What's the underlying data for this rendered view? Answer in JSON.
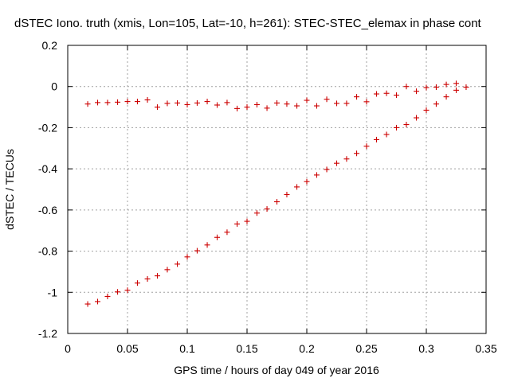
{
  "chart_data": {
    "type": "scatter",
    "title": "dSTEC Iono. truth (xmis, Lon=105, Lat=-10, h=261): STEC-STEC_elemax in phase cont",
    "xlabel": "GPS time / hours of day 049 of year 2016",
    "ylabel": "dSTEC  / TECUs",
    "xlim": [
      0,
      0.35
    ],
    "ylim": [
      -1.2,
      0.2
    ],
    "xticks": [
      0,
      0.05,
      0.1,
      0.15,
      0.2,
      0.25,
      0.3,
      0.35
    ],
    "xtick_labels": [
      "0",
      "0.05",
      "0.1",
      "0.15",
      "0.2",
      "0.25",
      "0.3",
      "0.35"
    ],
    "yticks": [
      -1.2,
      -1,
      -0.8,
      -0.6,
      -0.4,
      -0.2,
      0,
      0.2
    ],
    "ytick_labels": [
      "-1.2",
      "-1",
      "-0.8",
      "-0.6",
      "-0.4",
      "-0.2",
      "0",
      "0.2"
    ],
    "grid": true,
    "marker": "+",
    "marker_color": "#cc0000",
    "series": [
      {
        "name": "upper",
        "x": [
          0.0167,
          0.025,
          0.0333,
          0.0417,
          0.05,
          0.0583,
          0.0667,
          0.075,
          0.0833,
          0.0917,
          0.1,
          0.1083,
          0.1167,
          0.125,
          0.1333,
          0.1417,
          0.15,
          0.1583,
          0.1667,
          0.175,
          0.1833,
          0.1917,
          0.2,
          0.2083,
          0.2167,
          0.225,
          0.2333,
          0.2417,
          0.25,
          0.2583,
          0.2667,
          0.275,
          0.2833,
          0.2917,
          0.3,
          0.3083,
          0.3167,
          0.325,
          0.3333
        ],
        "y": [
          -0.085,
          -0.078,
          -0.078,
          -0.076,
          -0.073,
          -0.073,
          -0.065,
          -0.1,
          -0.082,
          -0.08,
          -0.088,
          -0.08,
          -0.073,
          -0.09,
          -0.078,
          -0.107,
          -0.1,
          -0.088,
          -0.105,
          -0.08,
          -0.085,
          -0.094,
          -0.067,
          -0.094,
          -0.062,
          -0.082,
          -0.082,
          -0.05,
          -0.074,
          -0.036,
          -0.033,
          -0.042,
          0.0,
          -0.023,
          -0.005,
          -0.003,
          0.01,
          0.015,
          -0.003
        ]
      },
      {
        "name": "lower",
        "x": [
          0.0167,
          0.025,
          0.0333,
          0.0417,
          0.05,
          0.0583,
          0.0667,
          0.075,
          0.0833,
          0.0917,
          0.1,
          0.1083,
          0.1167,
          0.125,
          0.1333,
          0.1417,
          0.15,
          0.1583,
          0.1667,
          0.175,
          0.1833,
          0.1917,
          0.2,
          0.2083,
          0.2167,
          0.225,
          0.2333,
          0.2417,
          0.25,
          0.2583,
          0.2667,
          0.275,
          0.2833,
          0.2917,
          0.3,
          0.3083,
          0.3167,
          0.325
        ],
        "y": [
          -1.057,
          -1.045,
          -1.02,
          -0.998,
          -0.99,
          -0.955,
          -0.935,
          -0.92,
          -0.89,
          -0.863,
          -0.828,
          -0.798,
          -0.77,
          -0.733,
          -0.708,
          -0.668,
          -0.655,
          -0.615,
          -0.595,
          -0.56,
          -0.525,
          -0.488,
          -0.462,
          -0.43,
          -0.403,
          -0.373,
          -0.352,
          -0.325,
          -0.29,
          -0.258,
          -0.233,
          -0.2,
          -0.185,
          -0.152,
          -0.115,
          -0.085,
          -0.05,
          -0.018
        ]
      }
    ]
  }
}
